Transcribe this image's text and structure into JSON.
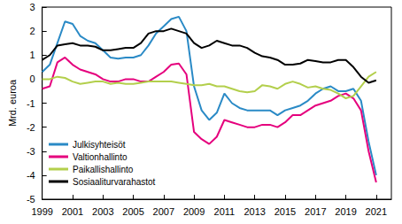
{
  "chart_data": {
    "type": "line",
    "y_label": "Mrd. euroa",
    "x": [
      1999,
      1999.5,
      2000,
      2000.5,
      2001,
      2001.5,
      2002,
      2002.5,
      2003,
      2003.5,
      2004,
      2004.5,
      2005,
      2005.5,
      2006,
      2006.5,
      2007,
      2007.5,
      2008,
      2008.5,
      2009,
      2009.5,
      2010,
      2010.5,
      2011,
      2011.5,
      2012,
      2012.5,
      2013,
      2013.5,
      2014,
      2014.5,
      2015,
      2015.5,
      2016,
      2016.5,
      2017,
      2017.5,
      2018,
      2018.5,
      2019,
      2019.5,
      2020,
      2020.5,
      2021
    ],
    "series": [
      {
        "name": "Julkisyhteisöt",
        "color": "#2a8ac6",
        "values": [
          0.3,
          0.6,
          1.5,
          2.4,
          2.3,
          1.8,
          1.6,
          1.5,
          1.2,
          0.9,
          0.85,
          0.9,
          0.9,
          1.0,
          1.4,
          1.9,
          2.2,
          2.5,
          2.6,
          2.0,
          -0.3,
          -1.3,
          -1.7,
          -1.4,
          -0.6,
          -1.0,
          -1.2,
          -1.3,
          -1.3,
          -1.3,
          -1.3,
          -1.5,
          -1.3,
          -1.2,
          -1.1,
          -0.9,
          -0.6,
          -0.4,
          -0.3,
          -0.5,
          -0.5,
          -0.4,
          -0.9,
          -2.6,
          -4.0
        ]
      },
      {
        "name": "Valtionhallinto",
        "color": "#e5007d",
        "values": [
          -0.4,
          -0.3,
          0.7,
          0.9,
          0.6,
          0.4,
          0.3,
          0.2,
          0.0,
          -0.1,
          -0.1,
          0.0,
          0.0,
          -0.1,
          -0.1,
          0.1,
          0.3,
          0.6,
          0.65,
          0.2,
          -2.2,
          -2.5,
          -2.7,
          -2.4,
          -1.7,
          -1.8,
          -1.9,
          -2.0,
          -2.0,
          -1.9,
          -1.9,
          -2.0,
          -1.8,
          -1.5,
          -1.5,
          -1.3,
          -1.1,
          -1.0,
          -0.9,
          -0.7,
          -0.6,
          -0.8,
          -1.3,
          -3.0,
          -4.3
        ]
      },
      {
        "name": "Paikallishallinto",
        "color": "#b3cf4c",
        "values": [
          0.0,
          0.0,
          0.1,
          0.05,
          -0.1,
          -0.2,
          -0.15,
          -0.1,
          -0.1,
          -0.2,
          -0.15,
          -0.2,
          -0.2,
          -0.15,
          -0.1,
          -0.1,
          -0.1,
          -0.1,
          -0.15,
          -0.2,
          -0.25,
          -0.25,
          -0.2,
          -0.3,
          -0.3,
          -0.4,
          -0.5,
          -0.55,
          -0.5,
          -0.25,
          -0.3,
          -0.4,
          -0.2,
          -0.1,
          -0.2,
          -0.35,
          -0.3,
          -0.4,
          -0.45,
          -0.6,
          -0.8,
          -0.7,
          -0.3,
          0.1,
          0.3
        ]
      },
      {
        "name": "Sosiaaliturvarahastot",
        "color": "#000000",
        "values": [
          0.8,
          1.0,
          1.4,
          1.45,
          1.5,
          1.4,
          1.4,
          1.35,
          1.2,
          1.2,
          1.25,
          1.3,
          1.3,
          1.5,
          1.9,
          2.0,
          2.0,
          2.1,
          2.0,
          1.9,
          1.5,
          1.3,
          1.4,
          1.6,
          1.5,
          1.4,
          1.4,
          1.3,
          1.1,
          0.95,
          0.9,
          0.8,
          0.6,
          0.6,
          0.65,
          0.8,
          0.75,
          0.7,
          0.7,
          0.8,
          0.8,
          0.5,
          0.1,
          -0.15,
          -0.05
        ]
      }
    ],
    "xlim": [
      1999,
      2022
    ],
    "xticks": [
      1999,
      2001,
      2003,
      2005,
      2007,
      2009,
      2011,
      2013,
      2015,
      2017,
      2019,
      2021
    ],
    "ylim": [
      -5,
      3
    ],
    "yticks": [
      -5,
      -4,
      -3,
      -2,
      -1,
      0,
      1,
      2,
      3
    ],
    "grid": false,
    "legend": "lower left"
  }
}
